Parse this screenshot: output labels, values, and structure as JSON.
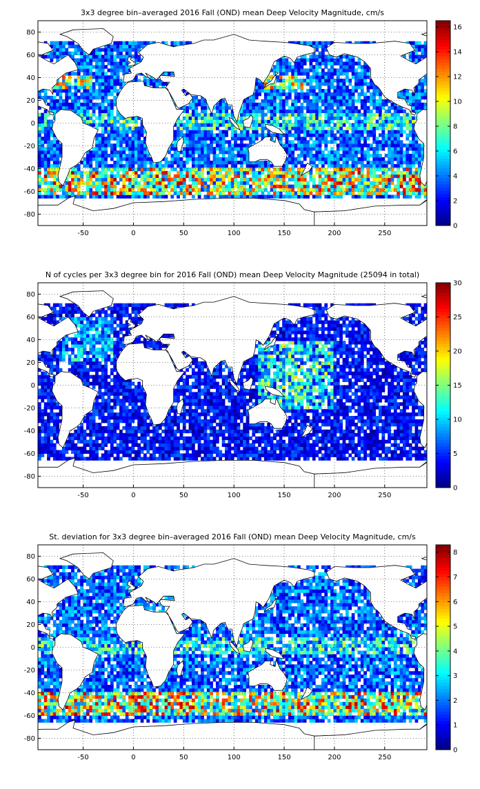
{
  "figure": {
    "colors": {
      "land": "#ffffff",
      "coastline": "#000000",
      "grid": "#000000",
      "colormap": "jet"
    },
    "icons": {
      "maps": "world-map-projection"
    }
  },
  "chart_data": [
    {
      "type": "heatmap",
      "title": "3x3 degree bin–averaged 2016 Fall (OND) mean Deep Velocity Magnitude, cm/s",
      "xlabel": "",
      "ylabel": "",
      "xlim": [
        -95,
        292
      ],
      "ylim": [
        -90,
        90
      ],
      "x_ticks": [
        -50,
        0,
        50,
        100,
        150,
        200,
        250
      ],
      "y_ticks": [
        80,
        60,
        40,
        20,
        0,
        -20,
        -40,
        -60,
        -80
      ],
      "grid": true,
      "bin_size_deg": 3,
      "colorbar": {
        "min": 0,
        "max": 16.5,
        "ticks": [
          0,
          2,
          4,
          6,
          8,
          10,
          12,
          14,
          16
        ]
      },
      "field_summary": {
        "typical_open_ocean": 3,
        "high_bands": [
          {
            "region": "Antarctic Circumpolar Current",
            "lat_range": [
              -62,
              -38
            ],
            "peak": 16
          },
          {
            "region": "Equatorial band",
            "lat_range": [
              -5,
              8
            ],
            "peak": 10
          },
          {
            "region": "Gulf Stream / Kuroshio",
            "lat_range": [
              30,
              42
            ],
            "peak": 14
          }
        ]
      }
    },
    {
      "type": "heatmap",
      "title": "N of cycles per 3x3 degree bin for 2016 Fall (OND) mean Deep Velocity Magnitude (25094 in total)",
      "xlabel": "",
      "ylabel": "",
      "xlim": [
        -95,
        292
      ],
      "ylim": [
        -90,
        90
      ],
      "x_ticks": [
        -50,
        0,
        50,
        100,
        150,
        200,
        250
      ],
      "y_ticks": [
        80,
        60,
        40,
        20,
        0,
        -20,
        -40,
        -60,
        -80
      ],
      "grid": true,
      "bin_size_deg": 3,
      "total_cycles": 25094,
      "colorbar": {
        "min": 0,
        "max": 30,
        "ticks": [
          0,
          5,
          10,
          15,
          20,
          25,
          30
        ]
      },
      "field_summary": {
        "typical_count": 4,
        "dense_regions": [
          {
            "region": "Western Pacific",
            "lon_range": [
              125,
              200
            ],
            "lat_range": [
              -20,
              40
            ],
            "peak": 25
          },
          {
            "region": "North Atlantic",
            "lon_range": [
              -70,
              -20
            ],
            "lat_range": [
              20,
              60
            ],
            "peak": 15
          }
        ]
      }
    },
    {
      "type": "heatmap",
      "title": "St. deviation for 3x3 degree bin–averaged 2016 Fall (OND) mean Deep Velocity Magnitude, cm/s",
      "xlabel": "",
      "ylabel": "",
      "xlim": [
        -95,
        292
      ],
      "ylim": [
        -90,
        90
      ],
      "x_ticks": [
        -50,
        0,
        50,
        100,
        150,
        200,
        250
      ],
      "y_ticks": [
        80,
        60,
        40,
        20,
        0,
        -20,
        -40,
        -60,
        -80
      ],
      "grid": true,
      "bin_size_deg": 3,
      "colorbar": {
        "min": 0,
        "max": 8.3,
        "ticks": [
          0,
          1,
          2,
          3,
          4,
          5,
          6,
          7,
          8
        ]
      },
      "field_summary": {
        "typical_open_ocean": 1.5,
        "high_bands": [
          {
            "region": "Antarctic Circumpolar Current",
            "lat_range": [
              -60,
              -40
            ],
            "peak": 8
          },
          {
            "region": "Equatorial band",
            "lat_range": [
              -5,
              8
            ],
            "peak": 5
          }
        ]
      }
    }
  ]
}
